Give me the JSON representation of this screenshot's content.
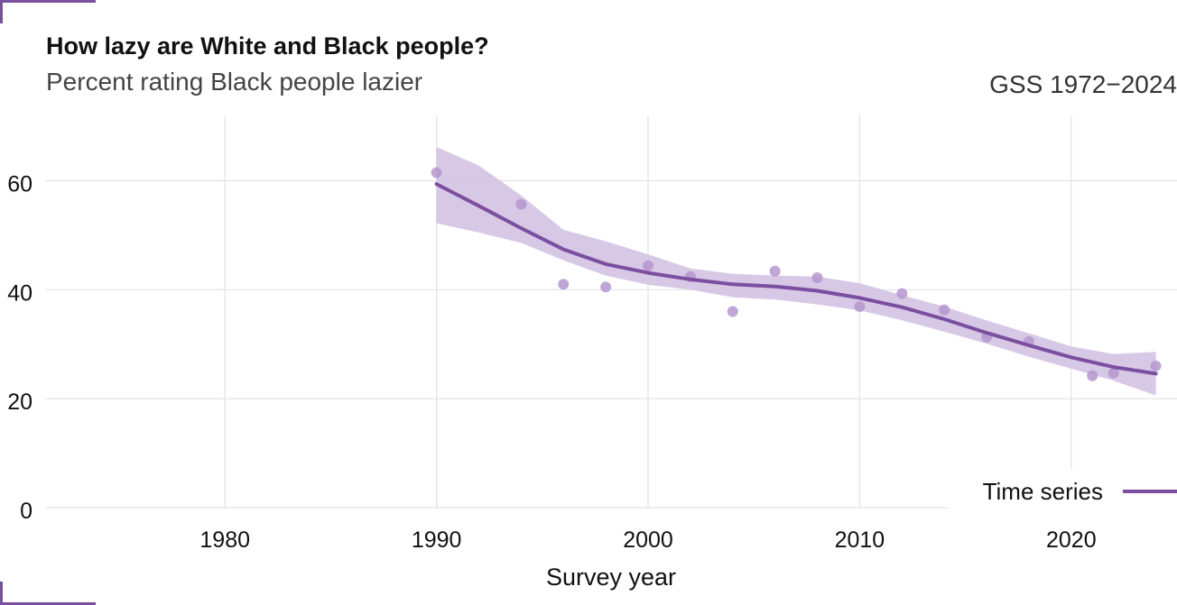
{
  "header": {
    "title": "How lazy are White and Black people?",
    "subtitle": "Percent rating Black people lazier",
    "source": "GSS 1972−2024"
  },
  "colors": {
    "accent": "#7b4fa0",
    "band": "#d3c2e2",
    "points": "#b596cf",
    "grid": "#e2e2e2"
  },
  "chart_data": {
    "type": "line",
    "title": "How lazy are White and Black people?",
    "subtitle": "Percent rating Black people lazier",
    "xlabel": "Survey year",
    "ylabel": "",
    "xlim": [
      1971.5,
      2025
    ],
    "ylim": [
      0,
      72
    ],
    "x_ticks": [
      1980,
      1990,
      2000,
      2010,
      2020
    ],
    "y_ticks": [
      0,
      20,
      40,
      60
    ],
    "grid": true,
    "legend": {
      "position": "bottom-right",
      "entries": [
        "Time series"
      ]
    },
    "points": {
      "x": [
        1990,
        1994,
        1996,
        1998,
        2000,
        2002,
        2004,
        2006,
        2008,
        2010,
        2012,
        2014,
        2016,
        2018,
        2021,
        2022,
        2024
      ],
      "y": [
        61.5,
        55.7,
        41.0,
        40.5,
        44.4,
        42.4,
        36.0,
        43.4,
        42.2,
        36.9,
        39.3,
        36.3,
        31.3,
        30.5,
        24.2,
        24.7,
        26.0
      ]
    },
    "series": [
      {
        "name": "Time series",
        "x": [
          1990,
          1992,
          1994,
          1996,
          1998,
          2000,
          2002,
          2004,
          2006,
          2008,
          2010,
          2012,
          2014,
          2016,
          2018,
          2020,
          2022,
          2024
        ],
        "y": [
          59.4,
          55.4,
          51.3,
          47.4,
          44.7,
          43.1,
          41.9,
          41.0,
          40.6,
          39.8,
          38.5,
          36.8,
          34.6,
          32.1,
          29.8,
          27.6,
          25.8,
          24.6
        ],
        "lower": [
          52.2,
          50.5,
          48.6,
          45.4,
          42.6,
          40.9,
          40.0,
          38.6,
          38.2,
          37.3,
          36.2,
          34.4,
          32.3,
          30.1,
          27.7,
          25.5,
          23.3,
          20.6
        ],
        "upper": [
          66.2,
          62.8,
          57.3,
          51.0,
          48.9,
          46.5,
          43.9,
          42.9,
          42.6,
          42.4,
          41.2,
          39.0,
          36.9,
          34.4,
          32.0,
          29.6,
          28.2,
          28.6
        ]
      }
    ]
  }
}
